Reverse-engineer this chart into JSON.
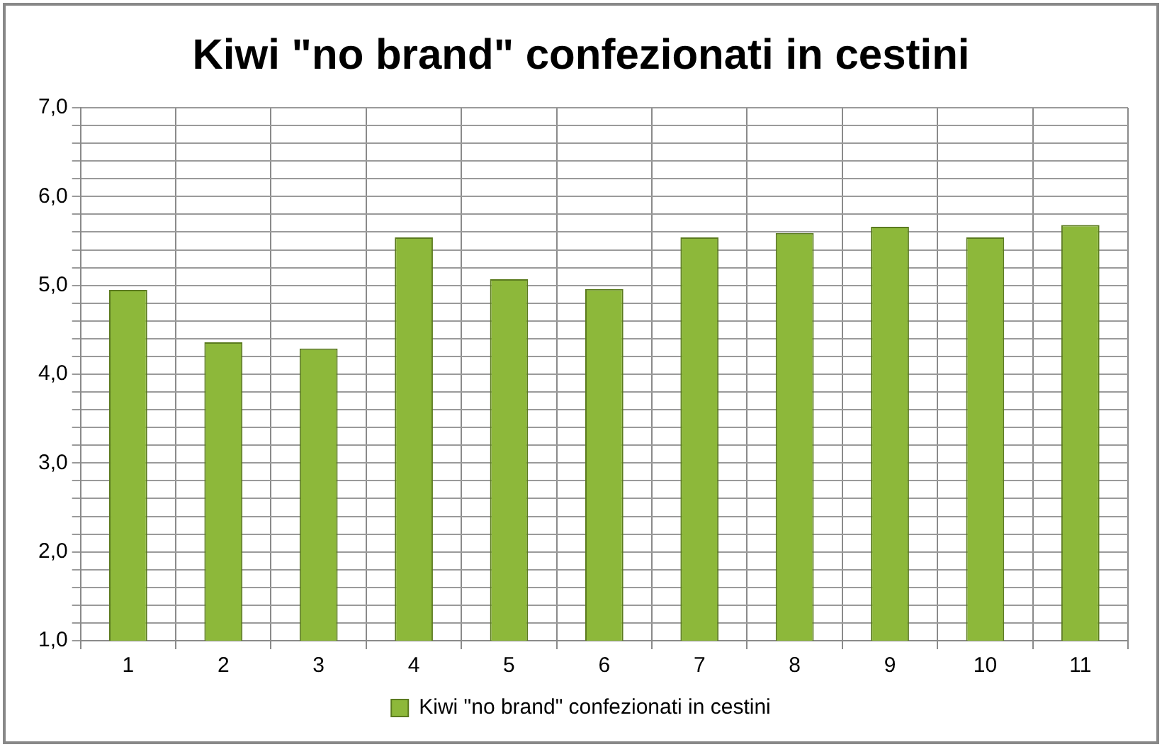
{
  "chart_data": {
    "type": "bar",
    "title": "Kiwi \"no brand\" confezionati in cestini",
    "categories": [
      "1",
      "2",
      "3",
      "4",
      "5",
      "6",
      "7",
      "8",
      "9",
      "10",
      "11"
    ],
    "series": [
      {
        "name": "Kiwi \"no brand\" confezionati in cestini",
        "color": "#8db83a",
        "values": [
          4.95,
          4.36,
          4.29,
          5.54,
          5.07,
          4.96,
          5.54,
          5.59,
          5.66,
          5.54,
          5.68
        ]
      }
    ],
    "ylim": [
      1,
      7
    ],
    "yticks": [
      {
        "value": 1,
        "label": "1,0"
      },
      {
        "value": 1.2,
        "label": null
      },
      {
        "value": 1.4,
        "label": null
      },
      {
        "value": 1.6,
        "label": null
      },
      {
        "value": 1.8,
        "label": null
      },
      {
        "value": 2,
        "label": "2,0"
      },
      {
        "value": 2.2,
        "label": null
      },
      {
        "value": 2.4,
        "label": null
      },
      {
        "value": 2.6,
        "label": null
      },
      {
        "value": 2.8,
        "label": null
      },
      {
        "value": 3,
        "label": "3,0"
      },
      {
        "value": 3.2,
        "label": null
      },
      {
        "value": 3.4,
        "label": null
      },
      {
        "value": 3.6,
        "label": null
      },
      {
        "value": 3.8,
        "label": null
      },
      {
        "value": 4,
        "label": "4,0"
      },
      {
        "value": 4.2,
        "label": null
      },
      {
        "value": 4.4,
        "label": null
      },
      {
        "value": 4.6,
        "label": null
      },
      {
        "value": 4.8,
        "label": null
      },
      {
        "value": 5,
        "label": "5,0"
      },
      {
        "value": 5.2,
        "label": null
      },
      {
        "value": 5.4,
        "label": null
      },
      {
        "value": 5.6,
        "label": null
      },
      {
        "value": 5.8,
        "label": null
      },
      {
        "value": 6,
        "label": "6,0"
      },
      {
        "value": 6.2,
        "label": null
      },
      {
        "value": 6.4,
        "label": null
      },
      {
        "value": 6.6,
        "label": null
      },
      {
        "value": 6.8,
        "label": null
      },
      {
        "value": 7,
        "label": "7,0"
      }
    ],
    "grid": true,
    "legend": "bottom"
  }
}
